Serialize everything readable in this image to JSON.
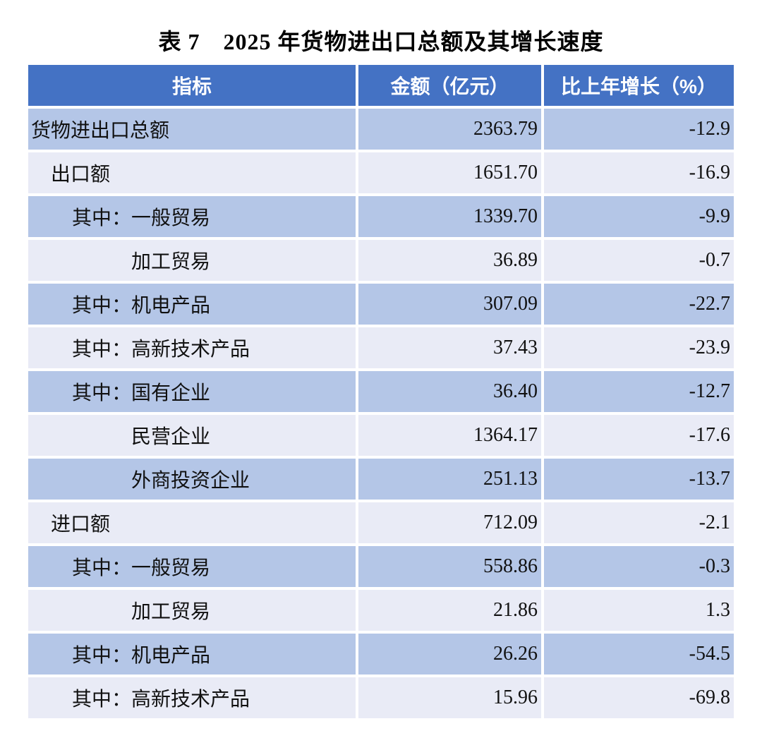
{
  "page": {
    "title": "表 7　2025 年货物进出口总额及其增长速度"
  },
  "colors": {
    "header_bg": "#4472C4",
    "header_text": "#FFFFFF",
    "row_dark": "#B4C6E7",
    "row_light": "#E9EBF6",
    "text": "#111111",
    "page_bg": "#FFFFFF"
  },
  "table": {
    "columns": [
      {
        "label": "指标"
      },
      {
        "label": "金额（亿元）"
      },
      {
        "label": "比上年增长（%）"
      }
    ],
    "rows": [
      {
        "label": "货物进出口总额",
        "indent": 0,
        "amount": "2363.79",
        "growth": "-12.9"
      },
      {
        "label": "出口额",
        "indent": 1,
        "amount": "1651.70",
        "growth": "-16.9"
      },
      {
        "label": "其中：一般贸易",
        "indent": 2,
        "amount": "1339.70",
        "growth": "-9.9"
      },
      {
        "label": "加工贸易",
        "indent": 3,
        "amount": "36.89",
        "growth": "-0.7"
      },
      {
        "label": "其中：机电产品",
        "indent": 2,
        "amount": "307.09",
        "growth": "-22.7"
      },
      {
        "label": "其中：高新技术产品",
        "indent": 2,
        "amount": "37.43",
        "growth": "-23.9"
      },
      {
        "label": "其中：国有企业",
        "indent": 2,
        "amount": "36.40",
        "growth": "-12.7"
      },
      {
        "label": "民营企业",
        "indent": 3,
        "amount": "1364.17",
        "growth": "-17.6"
      },
      {
        "label": "外商投资企业",
        "indent": 3,
        "amount": "251.13",
        "growth": "-13.7"
      },
      {
        "label": "进口额",
        "indent": 1,
        "amount": "712.09",
        "growth": "-2.1"
      },
      {
        "label": "其中：一般贸易",
        "indent": 2,
        "amount": "558.86",
        "growth": "-0.3"
      },
      {
        "label": "加工贸易",
        "indent": 3,
        "amount": "21.86",
        "growth": "1.3"
      },
      {
        "label": "其中：机电产品",
        "indent": 2,
        "amount": "26.26",
        "growth": "-54.5"
      },
      {
        "label": "其中：高新技术产品",
        "indent": 2,
        "amount": "15.96",
        "growth": "-69.8"
      }
    ]
  }
}
